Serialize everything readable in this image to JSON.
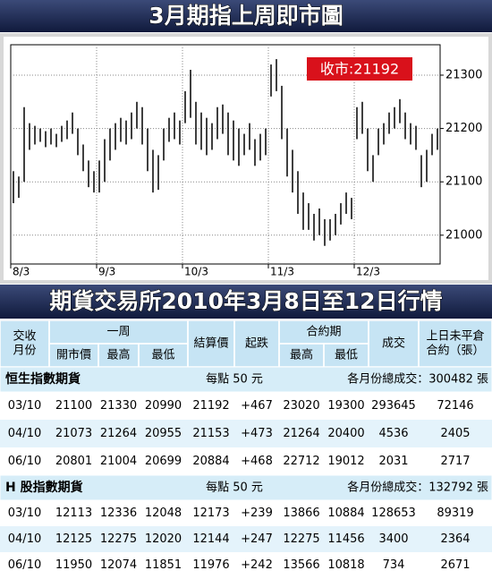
{
  "header": {
    "title": "3月期指上周即市圖"
  },
  "chart_data": {
    "type": "ohlc",
    "annotation": "收市:21192",
    "color": "#000000",
    "ylim": [
      20946,
      21357
    ],
    "yticks": [
      21000,
      21100,
      21200,
      21300
    ],
    "grid": true,
    "categories": [
      "8/3",
      null,
      null,
      null,
      null,
      null,
      null,
      null,
      null,
      null,
      null,
      null,
      null,
      null,
      null,
      null,
      "9/3",
      null,
      null,
      null,
      null,
      null,
      null,
      null,
      null,
      null,
      null,
      null,
      null,
      null,
      null,
      null,
      "10/3",
      null,
      null,
      null,
      null,
      null,
      null,
      null,
      null,
      null,
      null,
      null,
      null,
      null,
      null,
      null,
      "11/3",
      null,
      null,
      null,
      null,
      null,
      null,
      null,
      null,
      null,
      null,
      null,
      null,
      null,
      null,
      null,
      "12/3",
      null,
      null,
      null,
      null,
      null,
      null,
      null,
      null,
      null,
      null,
      null,
      null,
      null,
      null,
      null
    ],
    "high": [
      21120,
      21110,
      21240,
      21210,
      21205,
      21200,
      21195,
      21200,
      21190,
      21205,
      21215,
      21230,
      21200,
      21170,
      21140,
      21120,
      21140,
      21180,
      21200,
      21210,
      21220,
      21215,
      21230,
      21250,
      21240,
      21200,
      21160,
      21150,
      21200,
      21220,
      21230,
      21215,
      21270,
      21310,
      21250,
      21230,
      21220,
      21210,
      21240,
      21245,
      21230,
      21215,
      21200,
      21190,
      21210,
      21180,
      21190,
      21200,
      21320,
      21330,
      21280,
      21200,
      21160,
      21120,
      21080,
      21060,
      21040,
      21050,
      21030,
      21030,
      21040,
      21060,
      21080,
      21070,
      21240,
      21250,
      21200,
      21150,
      21200,
      21210,
      21230,
      21240,
      21255,
      21230,
      21210,
      21205,
      21150,
      21160,
      21190,
      21200
    ],
    "low": [
      21060,
      21070,
      21100,
      21160,
      21170,
      21175,
      21165,
      21170,
      21165,
      21175,
      21180,
      21190,
      21150,
      21120,
      21090,
      21080,
      21080,
      21100,
      21140,
      21160,
      21175,
      21170,
      21180,
      21200,
      21170,
      21120,
      21080,
      21085,
      21140,
      21175,
      21180,
      21170,
      21210,
      21220,
      21170,
      21160,
      21150,
      21160,
      21180,
      21190,
      21150,
      21140,
      21130,
      21150,
      21160,
      21130,
      21140,
      21150,
      21260,
      21270,
      21180,
      21110,
      21080,
      21040,
      21010,
      21010,
      20990,
      21000,
      20980,
      20990,
      21000,
      21020,
      21040,
      21030,
      21180,
      21190,
      21120,
      21100,
      21150,
      21170,
      21190,
      21200,
      21210,
      21180,
      21170,
      21160,
      21090,
      21100,
      21150,
      21160
    ]
  },
  "table": {
    "title": "期貨交易所2010年3月8日至12日行情",
    "header_top": [
      [
        "交收",
        "月份"
      ],
      [
        "一周"
      ],
      [
        "結算價"
      ],
      [
        "起跌"
      ],
      [
        "合約期"
      ],
      [
        "成交"
      ],
      [
        "上日未平倉",
        "合約（張）"
      ]
    ],
    "header_sub": [
      "開市價",
      "最高",
      "最低",
      "最高",
      "最低"
    ],
    "sections": [
      {
        "name": "恒生指數期貨",
        "unit": "每點 50 元",
        "total": "各月份總成交：300482 張",
        "rows": [
          [
            "03/10",
            "21100",
            "21330",
            "20990",
            "21192",
            "+467",
            "23020",
            "19300",
            "293645",
            "72146"
          ],
          [
            "04/10",
            "21073",
            "21264",
            "20955",
            "21153",
            "+473",
            "21264",
            "20400",
            "4536",
            "2405"
          ],
          [
            "06/10",
            "20801",
            "21004",
            "20699",
            "20884",
            "+468",
            "22712",
            "19012",
            "2031",
            "2717"
          ]
        ]
      },
      {
        "name": "H 股指數期貨",
        "unit": "每點 50 元",
        "total": "各月份總成交：132792 張",
        "rows": [
          [
            "03/10",
            "12113",
            "12336",
            "12048",
            "12173",
            "+239",
            "13866",
            "10884",
            "128653",
            "89319"
          ],
          [
            "04/10",
            "12125",
            "12275",
            "12020",
            "12144",
            "+247",
            "12275",
            "11456",
            "3400",
            "2364"
          ],
          [
            "06/10",
            "11950",
            "12074",
            "11851",
            "11976",
            "+242",
            "13566",
            "10818",
            "734",
            "2671"
          ]
        ]
      }
    ]
  }
}
